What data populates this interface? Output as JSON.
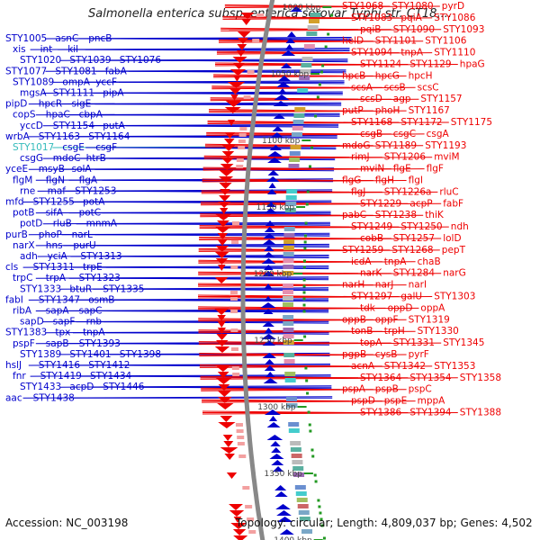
{
  "title": "Salmonella enterica subsp. enterica serovar Typhi str. CT18,...",
  "footer": {
    "accession": "Accession: NC_003198",
    "info": "Topology: circular; Length: 4,809,037 bp; Genes: 4,502"
  },
  "colors": {
    "minus_strand": "#0000cc",
    "plus_strand": "#ee0000",
    "highlight": "#33bbbb",
    "backbone": "#888888"
  },
  "scale_marks": [
    "1000 kbp",
    "1050 kbp",
    "1100 kbp",
    "1150 kbp",
    "1200 kbp",
    "1250 kbp",
    "1300 kbp",
    "1350 kbp",
    "1400 kbp"
  ],
  "left_labels": [
    "STY1005",
    "asnC",
    "pncB",
    "xis",
    "int",
    "kil",
    "STY1020",
    "STY1039",
    "STY1076",
    "STY1077",
    "STY1081",
    "fabA",
    "STY1089",
    "ompA",
    "yccF",
    "mgsA",
    "STY1111",
    "pipA",
    "pipD",
    "hpcR",
    "sigE",
    "copS",
    "hpaC",
    "cbpA",
    "yccD",
    "STY1154",
    "putA",
    "wrbA",
    "STY1163",
    "STY1164",
    "STY1017",
    "csgE",
    "csgF",
    "csgG",
    "mdoC",
    "htrB",
    "yceE",
    "msyB",
    "solA",
    "flgM",
    "flgN",
    "flgA",
    "rne",
    "maf",
    "STY1253",
    "mfd",
    "STY1255",
    "potA",
    "potB",
    "sifA",
    "potC",
    "potD",
    "rluB",
    "mnmA",
    "purB",
    "phoP",
    "narL",
    "narX",
    "hns",
    "purU",
    "adh",
    "yciA",
    "STY1313",
    "cls",
    "STY1311",
    "trpE",
    "trpC",
    "trpA",
    "STY1323",
    "STY1333",
    "btuR",
    "STY1335",
    "fabI",
    "STY1347",
    "osmB",
    "ribA",
    "sapA",
    "sapC",
    "sapD",
    "sapF",
    "rnb",
    "STY1383",
    "tpx",
    "tnpA",
    "pspF",
    "sapB",
    "STY1393",
    "STY1389",
    "STY1401",
    "STY1398",
    "hslJ",
    "STY1416",
    "STY1412",
    "fnr",
    "STY1419",
    "STY1434",
    "STY1433",
    "acpD",
    "STY1446",
    "aac",
    "STY1438"
  ],
  "right_labels": [
    "STY1068",
    "STY1080",
    "pyrD",
    "STY1083",
    "pqiA",
    "STY1086",
    "pqiB",
    "STY1090",
    "STY1093",
    "helD",
    "STY1101",
    "STY1106",
    "STY1094",
    "tnpA",
    "STY1110",
    "STY1124",
    "STY1129",
    "hpaG",
    "hpcB",
    "hpcG",
    "hpcH",
    "scsA",
    "scsB",
    "scsC",
    "scsD",
    "agp",
    "STY1157",
    "putP",
    "phoH",
    "STY1167",
    "STY1168",
    "STY1172",
    "STY1175",
    "csgB",
    "csgC",
    "csgA",
    "mdoG",
    "STY1189",
    "STY1193",
    "rimJ",
    "STY1206",
    "mviM",
    "mviN",
    "flgE",
    "flgF",
    "flgG",
    "flgH",
    "flgI",
    "flgJ",
    "STY1226a",
    "rluC",
    "STY1229",
    "acpP",
    "fabF",
    "pabC",
    "STY1238",
    "thiK",
    "STY1249",
    "STY1250",
    "ndh",
    "cobB",
    "STY1257",
    "lolD",
    "STY1259",
    "STY1268",
    "pepT",
    "icdA",
    "tnpA",
    "chaB",
    "narK",
    "STY1284",
    "narG",
    "narH",
    "narJ",
    "narI",
    "STY1297",
    "galU",
    "STY1303",
    "tdk",
    "oppD",
    "oppA",
    "oppB",
    "oppF",
    "STY1319",
    "tonB",
    "trpH",
    "STY1330",
    "topA",
    "STY1331",
    "STY1345",
    "pgpB",
    "cysB",
    "pyrF",
    "acnA",
    "STY1342",
    "STY1353",
    "STY1364",
    "STY1354",
    "STY1358",
    "pspA",
    "pspB",
    "pspC",
    "pspD",
    "pspE",
    "mppA",
    "STY1386",
    "STY1394",
    "STY1388"
  ]
}
